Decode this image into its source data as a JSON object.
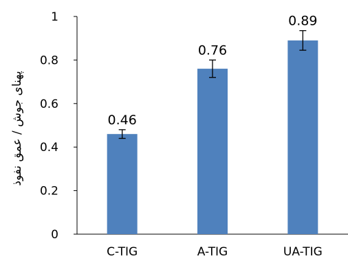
{
  "chart_data": {
    "type": "bar",
    "categories": [
      "C-TIG",
      "A-TIG",
      "UA-TIG"
    ],
    "values": [
      0.46,
      0.76,
      0.89
    ],
    "error": [
      0.02,
      0.04,
      0.045
    ],
    "data_labels": [
      "0.46",
      "0.76",
      "0.89"
    ],
    "title": "",
    "xlabel": "",
    "ylabel": "پهنای جوش / عمق نفوذ",
    "ylim": [
      0,
      1
    ],
    "yticks": [
      0,
      0.2,
      0.4,
      0.6,
      0.8,
      1
    ],
    "ytick_labels": [
      "0",
      "0.2",
      "0.4",
      "0.6",
      "0.8",
      "1"
    ],
    "grid": false,
    "legend": "none",
    "colors": {
      "bar": "#4f81bd",
      "axis": "#000000"
    }
  }
}
